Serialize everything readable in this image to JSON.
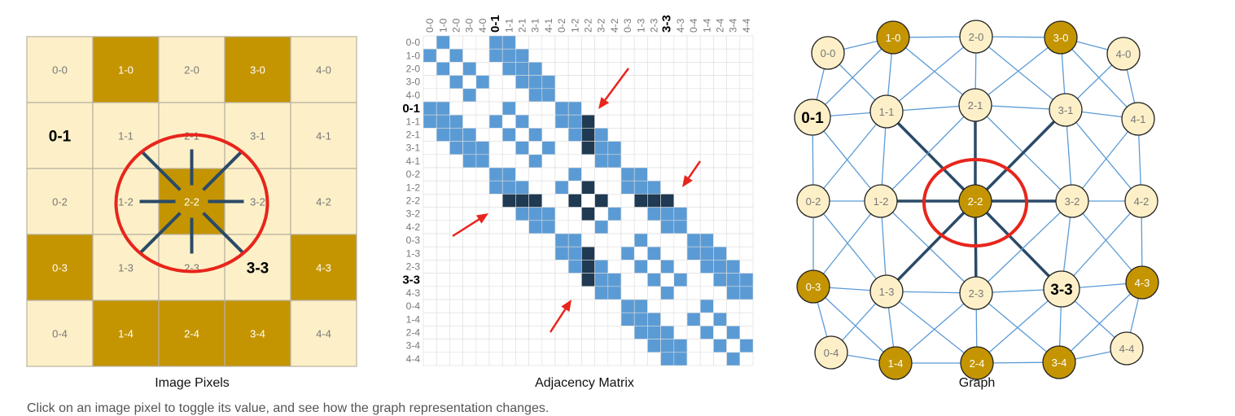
{
  "captions": {
    "pixels": "Image Pixels",
    "matrix": "Adjacency Matrix",
    "graph": "Graph"
  },
  "instructions": "Click on an image pixel to toggle its value, and see how the graph representation changes.",
  "colors": {
    "pixel_on": "#c49500",
    "pixel_off": "#fdf0c8",
    "edge": "#5b9bd5",
    "edge_highlight": "#2a4a68",
    "matrix_cell": "#5b9bd5",
    "matrix_highlight": "#1f3a52",
    "annotation_red": "#e8251c",
    "grid": "#c8c8c8"
  },
  "grid_size": 5,
  "pixels": {
    "on": [
      "1-0",
      "3-0",
      "2-2",
      "0-3",
      "4-3",
      "1-4",
      "2-4",
      "3-4"
    ],
    "highlighted_labels": [
      "0-1",
      "3-3"
    ],
    "selected": "2-2"
  },
  "matrix": {
    "labels": [
      "0-0",
      "1-0",
      "2-0",
      "3-0",
      "4-0",
      "0-1",
      "1-1",
      "2-1",
      "3-1",
      "4-1",
      "0-2",
      "1-2",
      "2-2",
      "3-2",
      "4-2",
      "0-3",
      "1-3",
      "2-3",
      "3-3",
      "4-3",
      "0-4",
      "1-4",
      "2-4",
      "3-4",
      "4-4"
    ]
  }
}
